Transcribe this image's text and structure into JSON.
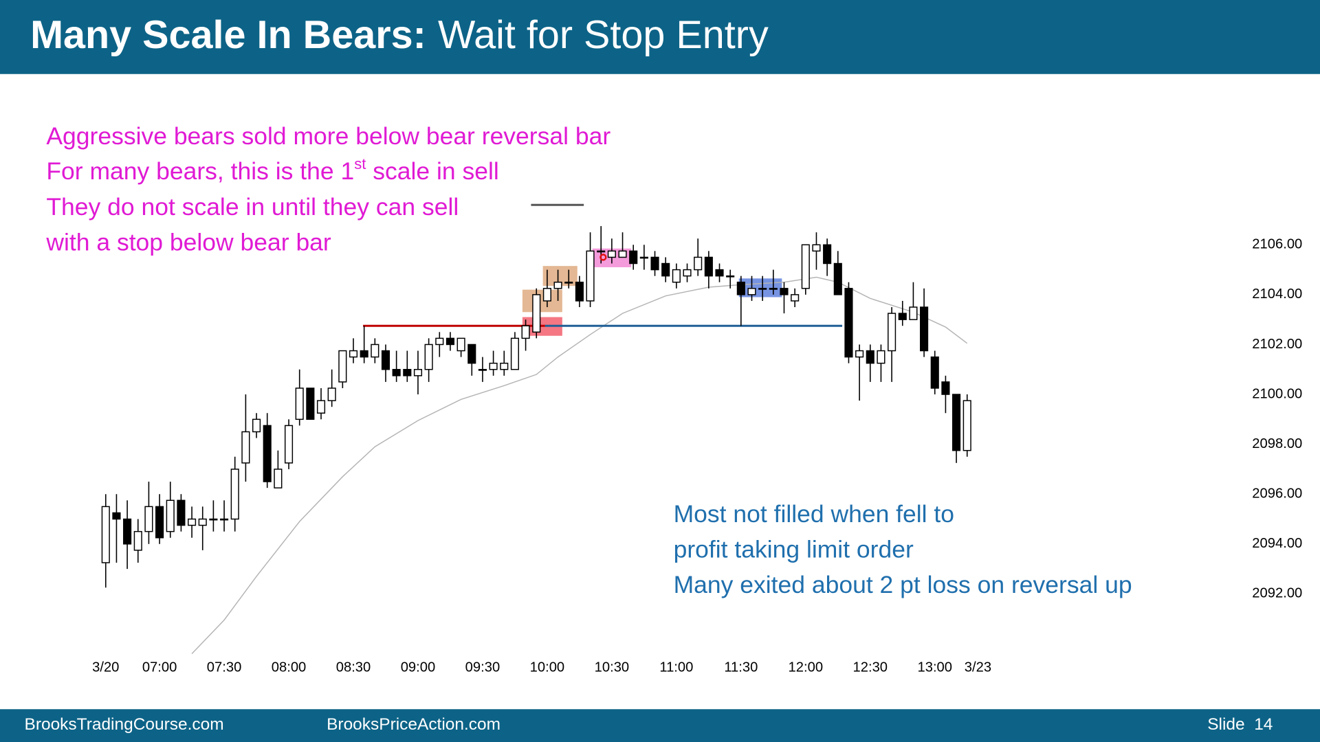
{
  "header": {
    "title_bold": "Many Scale In Bears:",
    "title_rest": "Wait for Stop Entry"
  },
  "notes_top": {
    "color": "#e01ad4",
    "lines": [
      "Aggressive bears sold more below bear reversal bar",
      {
        "text": "For many bears, this is the 1",
        "sup": "st",
        "after": " scale in sell"
      },
      "They do not scale in until they can sell",
      "with a stop below bear bar"
    ]
  },
  "notes_bottom": {
    "color": "#1f6fad",
    "lines": [
      "Most not filled when fell to",
      "profit taking limit order",
      "Many exited about 2 pt loss on reversal up"
    ]
  },
  "footer": {
    "left": "BrooksTradingCourse.com",
    "middle": "BrooksPriceAction.com",
    "right": "Slide  14"
  },
  "chart_data": {
    "type": "candlestick",
    "up_color": "#ffffff",
    "down_color": "#000000",
    "edge_color": "#000000",
    "x": [
      0,
      1,
      2,
      3,
      4,
      5,
      6,
      7,
      8,
      9,
      10,
      11,
      12,
      13,
      14,
      15,
      16,
      17,
      18,
      19,
      20,
      21,
      22,
      23,
      24,
      25,
      26,
      27,
      28,
      29,
      30,
      31,
      32,
      33,
      34,
      35,
      36,
      37,
      38,
      39,
      40,
      41,
      42,
      43,
      44,
      45,
      46,
      47,
      48,
      49,
      50,
      51,
      52,
      53,
      54,
      55,
      56,
      57,
      58,
      59,
      60,
      61,
      62,
      63,
      64,
      65,
      66,
      67,
      68,
      69,
      70,
      71,
      72,
      73,
      74,
      75,
      76,
      77,
      78,
      79,
      80
    ],
    "open": [
      2093.25,
      2095.25,
      2095,
      2093.75,
      2094.5,
      2095.5,
      2094.5,
      2095.75,
      2094.75,
      2094.75,
      2095,
      2095,
      2095,
      2097.25,
      2098.5,
      2098.75,
      2096.25,
      2097.25,
      2099,
      2100.25,
      2099.25,
      2099.75,
      2100.5,
      2101.5,
      2101.75,
      2101.5,
      2101.75,
      2101,
      2101,
      2100.75,
      2101,
      2102,
      2102.25,
      2101.75,
      2102,
      2101,
      2101,
      2101,
      2101,
      2102.25,
      2102.5,
      2103.75,
      2104.25,
      2104.5,
      2104.5,
      2103.75,
      2105.75,
      2105.5,
      2105.5,
      2105.75,
      2105.5,
      2105.5,
      2105.25,
      2104.5,
      2104.75,
      2105,
      2105.5,
      2105,
      2104.75,
      2104.5,
      2104,
      2104.25,
      2104.25,
      2104.25,
      2103.75,
      2104.25,
      2105.75,
      2106,
      2105.25,
      2104.25,
      2101.5,
      2101.75,
      2101.25,
      2101.75,
      2103.25,
      2103,
      2103.5,
      2101.5,
      2100.5,
      2100,
      2097.75
    ],
    "high": [
      2096,
      2096,
      2095.75,
      2095,
      2096.5,
      2096,
      2096.5,
      2096,
      2095.5,
      2095.5,
      2095.75,
      2095.75,
      2097.5,
      2100,
      2099.25,
      2099.25,
      2097.75,
      2099,
      2101,
      2100.25,
      2100.25,
      2101,
      2101.75,
      2102.25,
      2102.75,
      2102.25,
      2102,
      2101.75,
      2101.75,
      2101.75,
      2102.25,
      2102.5,
      2102.5,
      2102.25,
      2102,
      2101.5,
      2101.75,
      2101.75,
      2102.5,
      2103,
      2104.25,
      2105,
      2105,
      2105,
      2104.75,
      2106.5,
      2106.75,
      2106.25,
      2106.5,
      2106,
      2106,
      2105.75,
      2105.5,
      2105.25,
      2105.25,
      2106.25,
      2105.75,
      2105.25,
      2105,
      2104.75,
      2104.75,
      2104.75,
      2105,
      2104.5,
      2104.25,
      2106,
      2106.5,
      2106.25,
      2105.75,
      2104.5,
      2102,
      2102,
      2102,
      2103.5,
      2103.75,
      2104.5,
      2104.25,
      2101.75,
      2100.75,
      2100,
      2100
    ],
    "low": [
      2092.25,
      2093.25,
      2093,
      2093.25,
      2094,
      2094,
      2094.25,
      2094.5,
      2094.25,
      2093.75,
      2094.5,
      2094.5,
      2094.5,
      2096.5,
      2098.25,
      2096.25,
      2096.25,
      2097,
      2098.75,
      2099,
      2099,
      2099.5,
      2100.25,
      2101.25,
      2101.25,
      2101.25,
      2100.5,
      2100.5,
      2100.5,
      2100,
      2100.5,
      2101.5,
      2101.75,
      2101.5,
      2100.75,
      2100.5,
      2100.75,
      2100.75,
      2101,
      2101.75,
      2102.25,
      2103.5,
      2103.75,
      2104.25,
      2103.5,
      2103.5,
      2105.25,
      2105.25,
      2105.5,
      2105,
      2105,
      2104.75,
      2104.5,
      2104.25,
      2104.5,
      2104.75,
      2104.25,
      2104.5,
      2104.25,
      2102.75,
      2103.75,
      2103.75,
      2104,
      2103.25,
      2103.5,
      2104,
      2105,
      2104.75,
      2104,
      2101.25,
      2099.75,
      2100.5,
      2100.5,
      2100.5,
      2102.75,
      2103,
      2101.5,
      2100,
      2099.25,
      2097.25,
      2097.5
    ],
    "close": [
      2095.5,
      2095,
      2094,
      2094.5,
      2095.5,
      2094.25,
      2095.75,
      2094.75,
      2095,
      2095,
      2095,
      2095,
      2097,
      2098.5,
      2099,
      2096.5,
      2097,
      2098.75,
      2100.25,
      2099,
      2099.75,
      2100.25,
      2101.75,
      2101.75,
      2101.5,
      2102,
      2101,
      2100.75,
      2100.75,
      2101,
      2102,
      2102.25,
      2102,
      2102.25,
      2101.25,
      2101,
      2101.25,
      2101.25,
      2102.25,
      2102.75,
      2104,
      2104.25,
      2104.5,
      2104.5,
      2103.75,
      2105.75,
      2105.75,
      2105.75,
      2105.75,
      2105.25,
      2105.5,
      2105,
      2104.75,
      2105,
      2105,
      2105.5,
      2104.75,
      2104.75,
      2104.75,
      2104,
      2104.25,
      2104.25,
      2104.25,
      2104,
      2104,
      2106,
      2106,
      2105.25,
      2104,
      2101.5,
      2101.75,
      2101.25,
      2101.75,
      2103.25,
      2103,
      2103.5,
      2101.75,
      2100.25,
      2100,
      2097.75,
      2099.75
    ],
    "ma": {
      "color": "#b4b4b4",
      "x": [
        8,
        11,
        14,
        18,
        22,
        25,
        29,
        33,
        37,
        40,
        42,
        45,
        48,
        52,
        56,
        59,
        63,
        66,
        68,
        71,
        75,
        78,
        80
      ],
      "values": [
        2089.6,
        2090.95,
        2092.7,
        2094.9,
        2096.7,
        2097.9,
        2098.95,
        2099.8,
        2100.35,
        2100.8,
        2101.5,
        2102.4,
        2103.25,
        2103.95,
        2104.3,
        2104.4,
        2104.5,
        2104.7,
        2104.5,
        2103.85,
        2103.3,
        2102.7,
        2102.05
      ]
    },
    "hlines": [
      {
        "y": 2102.75,
        "x": [
          23.9,
          40.8
        ],
        "color": "#c00000"
      },
      {
        "y": 2102.75,
        "x": [
          40.8,
          68.4
        ],
        "color": "#1f5f96"
      },
      {
        "y": 2107.6,
        "x": [
          39.5,
          44.4
        ],
        "color": "#555555"
      }
    ],
    "boxes": [
      {
        "x": [
          38.7,
          42.4
        ],
        "y": [
          2102.35,
          2103.1
        ],
        "color": "#f04a5a"
      },
      {
        "x": [
          38.7,
          42.4
        ],
        "y": [
          2103.3,
          2104.2
        ],
        "color": "#dba070"
      },
      {
        "x": [
          40.6,
          43.8
        ],
        "y": [
          2104.35,
          2105.15
        ],
        "color": "#dba070"
      },
      {
        "x": [
          45.2,
          48.8
        ],
        "y": [
          2105.1,
          2105.85
        ],
        "color": "#f07ad0"
      },
      {
        "x": [
          58.8,
          62.8
        ],
        "y": [
          2103.9,
          2104.65
        ],
        "color": "#4a70d8"
      }
    ],
    "markers": [
      {
        "x": 46.2,
        "y": 2105.5,
        "color": "#e01010"
      }
    ],
    "xlim": [
      -2,
      84
    ],
    "ylim": [
      2089.5,
      2108
    ],
    "xticks": [
      {
        "value": 0,
        "label": "3/20"
      },
      {
        "value": 5,
        "label": "07:00"
      },
      {
        "value": 11,
        "label": "07:30"
      },
      {
        "value": 17,
        "label": "08:00"
      },
      {
        "value": 23,
        "label": "08:30"
      },
      {
        "value": 29,
        "label": "09:00"
      },
      {
        "value": 35,
        "label": "09:30"
      },
      {
        "value": 41,
        "label": "10:00"
      },
      {
        "value": 47,
        "label": "10:30"
      },
      {
        "value": 53,
        "label": "11:00"
      },
      {
        "value": 59,
        "label": "11:30"
      },
      {
        "value": 65,
        "label": "12:00"
      },
      {
        "value": 71,
        "label": "12:30"
      },
      {
        "value": 77,
        "label": "13:00"
      },
      {
        "value": 81,
        "label": "3/23"
      }
    ],
    "yticks": [
      {
        "value": 2092,
        "label": "2092.00"
      },
      {
        "value": 2094,
        "label": "2094.00"
      },
      {
        "value": 2096,
        "label": "2096.00"
      },
      {
        "value": 2098,
        "label": "2098.00"
      },
      {
        "value": 2100,
        "label": "2100.00"
      },
      {
        "value": 2102,
        "label": "2102.00"
      },
      {
        "value": 2104,
        "label": "2104.00"
      },
      {
        "value": 2106,
        "label": "2106.00"
      }
    ]
  }
}
